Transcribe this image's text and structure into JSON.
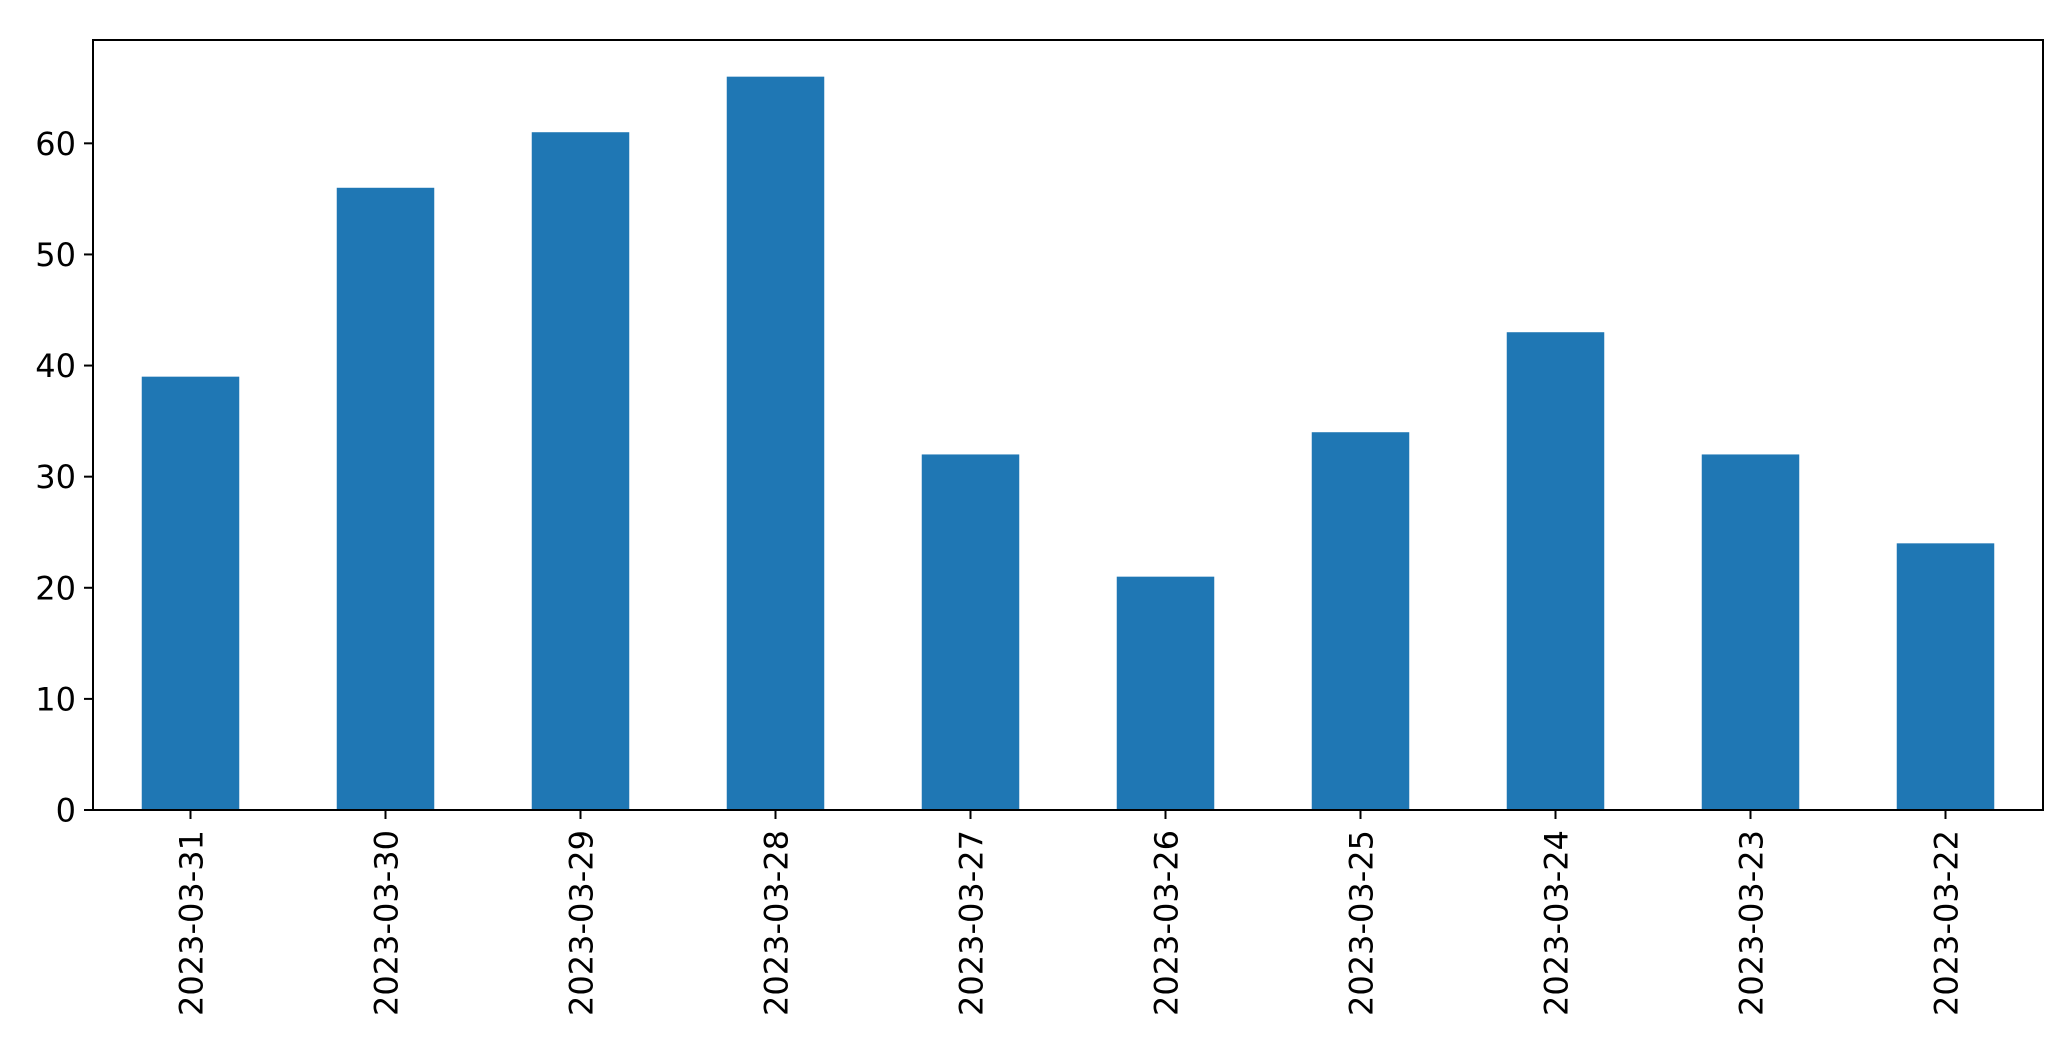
{
  "figure": {
    "background": "#ffffff"
  },
  "chart_data": {
    "type": "bar",
    "title": "",
    "xlabel": "",
    "ylabel": "",
    "categories": [
      "2023-03-31",
      "2023-03-30",
      "2023-03-29",
      "2023-03-28",
      "2023-03-27",
      "2023-03-26",
      "2023-03-25",
      "2023-03-24",
      "2023-03-23",
      "2023-03-22"
    ],
    "values": [
      39,
      56,
      61,
      66,
      32,
      21,
      34,
      43,
      32,
      24
    ],
    "yticks": [
      0,
      10,
      20,
      30,
      40,
      50,
      60
    ],
    "ylim": [
      0,
      69.3
    ],
    "bar_color": "#1f77b4",
    "axis_color": "#000000",
    "grid": false,
    "legend_position": "none",
    "x_tick_rotation": 90,
    "bar_relative_width": 0.5
  }
}
